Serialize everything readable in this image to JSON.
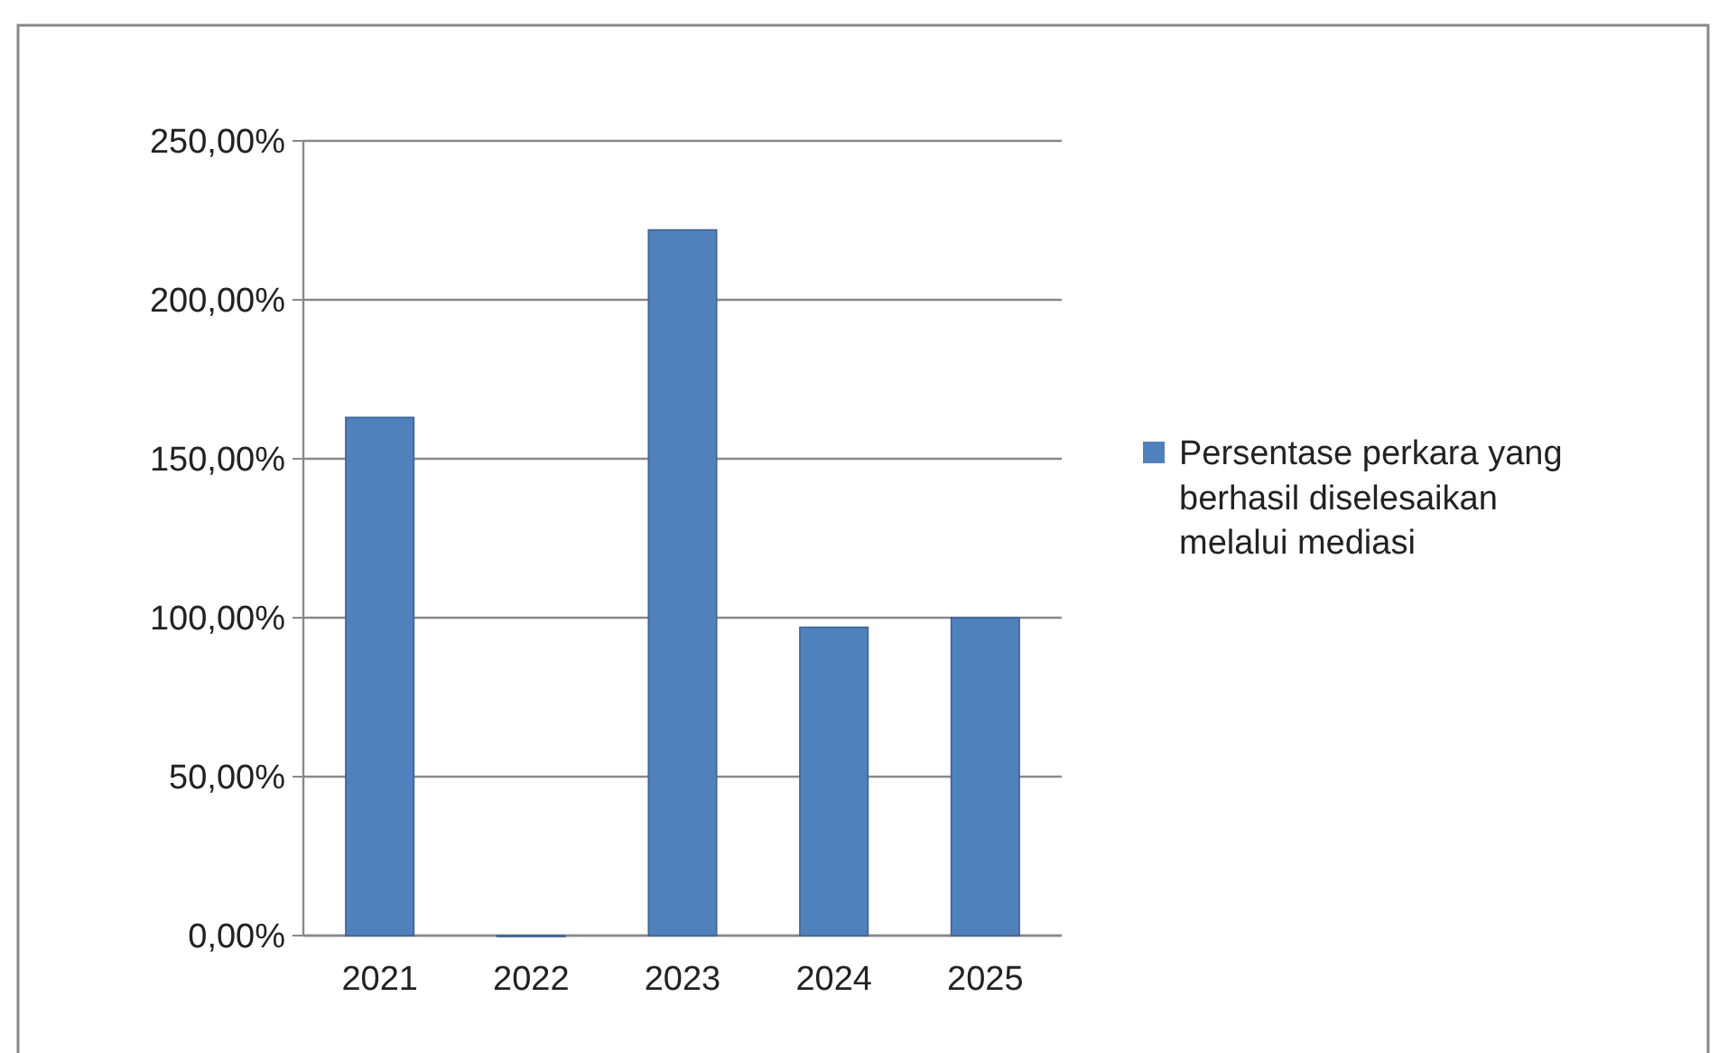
{
  "chart_data": {
    "type": "bar",
    "categories": [
      "2021",
      "2022",
      "2023",
      "2024",
      "2025"
    ],
    "series": [
      {
        "name": "Persentase perkara yang berhasil diselesaikan melalui mediasi",
        "color": "#4f81bd",
        "values": [
          163,
          0,
          222,
          97,
          100
        ]
      }
    ],
    "ylim": [
      0,
      250
    ],
    "yticks": [
      {
        "value": 0,
        "label": "0,00%"
      },
      {
        "value": 50,
        "label": "50,00%"
      },
      {
        "value": 100,
        "label": "100,00%"
      },
      {
        "value": 150,
        "label": "150,00%"
      },
      {
        "value": 200,
        "label": "200,00%"
      },
      {
        "value": 250,
        "label": "250,00%"
      }
    ],
    "grid": "y",
    "legend": "right"
  }
}
